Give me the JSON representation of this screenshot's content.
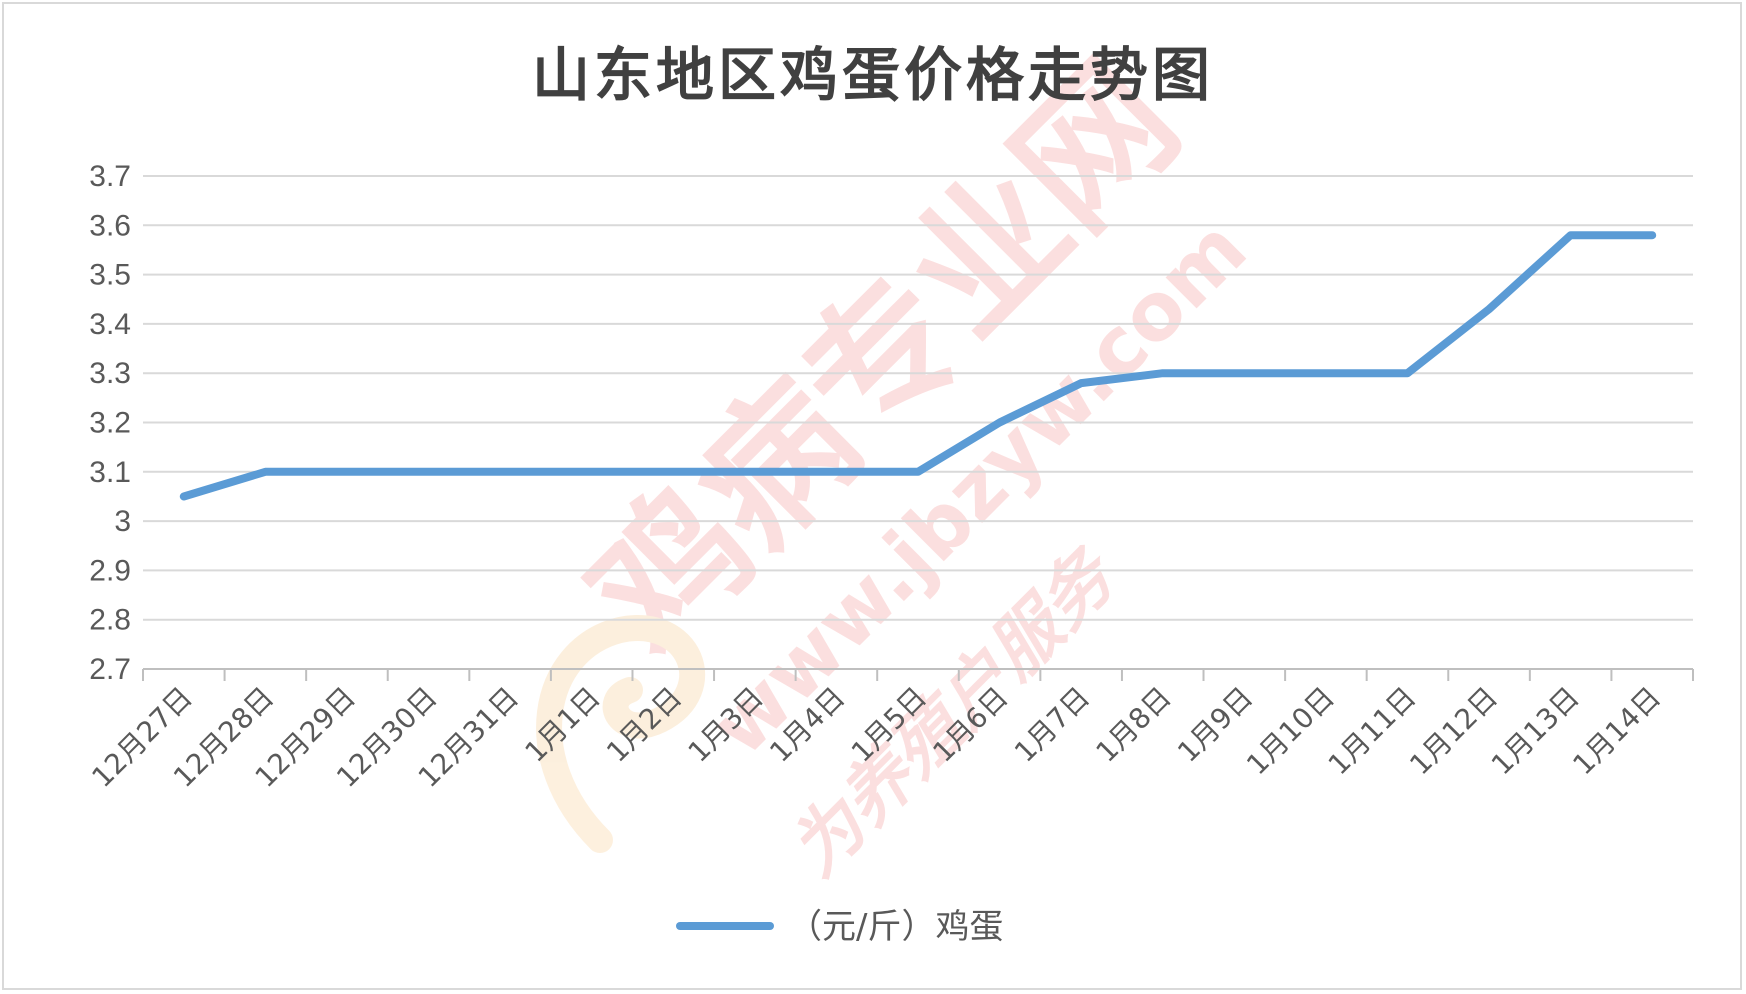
{
  "chart_data": {
    "type": "line",
    "title": "山东地区鸡蛋价格走势图",
    "categories": [
      "12月27日",
      "12月28日",
      "12月29日",
      "12月30日",
      "12月31日",
      "1月1日",
      "1月2日",
      "1月3日",
      "1月4日",
      "1月5日",
      "1月6日",
      "1月7日",
      "1月8日",
      "1月9日",
      "1月10日",
      "1月11日",
      "1月12日",
      "1月13日",
      "1月14日"
    ],
    "series": [
      {
        "name": "（元/斤）鸡蛋",
        "color": "#5b9bd5",
        "values": [
          3.05,
          3.1,
          3.1,
          3.1,
          3.1,
          3.1,
          3.1,
          3.1,
          3.1,
          3.1,
          3.2,
          3.28,
          3.3,
          3.3,
          3.3,
          3.3,
          3.43,
          3.58,
          3.58
        ]
      }
    ],
    "yticks": [
      "3.7",
      "3.6",
      "3.5",
      "3.4",
      "3.3",
      "3.2",
      "3.1",
      "3",
      "2.9",
      "2.8",
      "2.7"
    ],
    "ylim": [
      2.7,
      3.7
    ],
    "grid": true,
    "legend": "bottom-center"
  },
  "watermark": {
    "text": "鸡病专业网",
    "url": "www.jbzyw.com",
    "script": "为养殖户服务"
  }
}
